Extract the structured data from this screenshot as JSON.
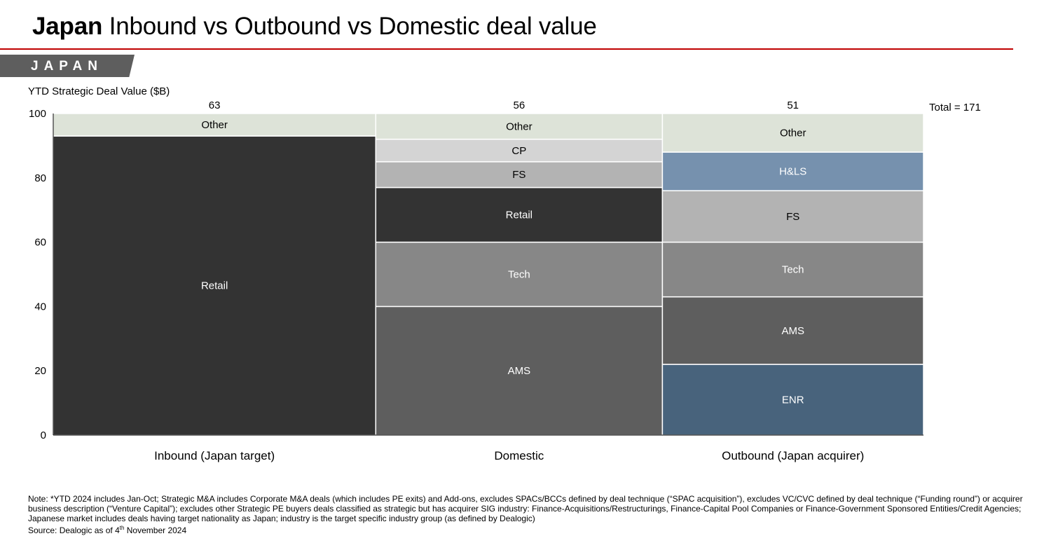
{
  "header": {
    "title_bold": "Japan",
    "title_rest": "Inbound vs Outbound vs Domestic deal value",
    "tag": "JAPAN"
  },
  "chart_data": {
    "type": "marimekko",
    "ylabel": "YTD Strategic Deal Value ($B)",
    "ylim": [
      0,
      100
    ],
    "yticks": [
      "0",
      "20",
      "40",
      "60",
      "80",
      "100"
    ],
    "total_label": "Total = 171",
    "colors": {
      "Other": "#dde3d8",
      "Retail": "#333333",
      "AMS": "#5e5e5e",
      "Tech": "#878787",
      "FS": "#b3b3b3",
      "CP": "#d4d4d4",
      "H&LS": "#7691ae",
      "ENR": "#48637c"
    },
    "columns": [
      {
        "name": "Inbound (Japan target)",
        "total": 63,
        "total_label": "63",
        "segments": [
          {
            "label": "Retail",
            "share": 93
          },
          {
            "label": "Other",
            "share": 7
          }
        ]
      },
      {
        "name": "Domestic",
        "total": 56,
        "total_label": "56",
        "segments": [
          {
            "label": "AMS",
            "share": 40
          },
          {
            "label": "Tech",
            "share": 20
          },
          {
            "label": "Retail",
            "share": 17
          },
          {
            "label": "FS",
            "share": 8
          },
          {
            "label": "CP",
            "share": 7
          },
          {
            "label": "Other",
            "share": 8
          }
        ]
      },
      {
        "name": "Outbound (Japan acquirer)",
        "total": 51,
        "total_label": "51",
        "segments": [
          {
            "label": "ENR",
            "share": 22
          },
          {
            "label": "AMS",
            "share": 21
          },
          {
            "label": "Tech",
            "share": 17
          },
          {
            "label": "FS",
            "share": 16
          },
          {
            "label": "H&LS",
            "share": 12
          },
          {
            "label": "Other",
            "share": 12
          }
        ]
      }
    ]
  },
  "footer": {
    "note": "Note: *YTD 2024 includes Jan-Oct; Strategic M&A includes Corporate M&A deals (which includes PE exits) and Add-ons, excludes SPACs/BCCs defined by deal technique (“SPAC acquisition”), excludes VC/CVC defined by deal technique (“Funding round”) or acquirer business description (“Venture Capital”); excludes other Strategic PE buyers deals classified as strategic but has acquirer SIG industry: Finance-Acquisitions/Restructurings, Finance-Capital Pool Companies or Finance-Government Sponsored Entities/Credit Agencies; Japanese market includes deals having target nationality as Japan; industry is the target specific industry group (as defined by Dealogic)",
    "source_prefix": "Source: Dealogic as of 4",
    "source_sup": "th",
    "source_suffix": " November 2024"
  }
}
